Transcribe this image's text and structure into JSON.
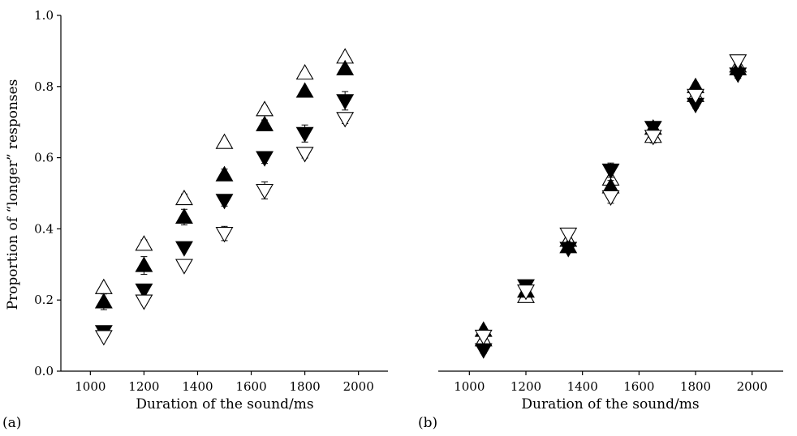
{
  "chart_data": [
    {
      "type": "scatter",
      "panel_label": "(a)",
      "xlabel": "Duration of the sound/ms",
      "ylabel": "Proportion of “longer” responses",
      "xlim": [
        890,
        2110
      ],
      "ylim": [
        0.0,
        1.0
      ],
      "xticks": [
        1000,
        1200,
        1400,
        1600,
        1800,
        2000
      ],
      "yticks": [
        0.0,
        0.2,
        0.4,
        0.6,
        0.8,
        1.0
      ],
      "ytick_labels": [
        "0.0",
        "0.2",
        "0.4",
        "0.6",
        "0.8",
        "1.0"
      ],
      "grid": false,
      "x": [
        1050,
        1200,
        1350,
        1500,
        1650,
        1800,
        1950
      ],
      "series": [
        {
          "marker": "triangle-up-open",
          "values": [
            0.235,
            0.357,
            0.485,
            0.643,
            0.735,
            0.838,
            0.883
          ],
          "errors": [
            0.01,
            0.012,
            0.013,
            0.01,
            0.01,
            0.006,
            0.006
          ]
        },
        {
          "marker": "triangle-up-filled",
          "values": [
            0.195,
            0.297,
            0.433,
            0.552,
            0.693,
            0.787,
            0.85
          ],
          "errors": [
            0.022,
            0.025,
            0.022,
            0.016,
            0.013,
            0.006,
            0.008
          ]
        },
        {
          "marker": "triangle-down-filled",
          "values": [
            0.111,
            0.228,
            0.347,
            0.48,
            0.6,
            0.668,
            0.76
          ],
          "errors": [
            0.003,
            0.006,
            0.006,
            0.016,
            0.016,
            0.024,
            0.026
          ]
        },
        {
          "marker": "triangle-down-open",
          "values": [
            0.097,
            0.197,
            0.297,
            0.387,
            0.508,
            0.612,
            0.71
          ],
          "errors": [
            0.003,
            0.005,
            0.008,
            0.02,
            0.024,
            0.013,
            0.014
          ]
        }
      ]
    },
    {
      "type": "scatter",
      "panel_label": "(b)",
      "xlabel": "Duration of the sound/ms",
      "xlim": [
        890,
        2110
      ],
      "ylim": [
        0.0,
        1.0
      ],
      "xticks": [
        1000,
        1200,
        1400,
        1600,
        1800,
        2000
      ],
      "grid": false,
      "x": [
        1050,
        1200,
        1350,
        1500,
        1650,
        1800,
        1950
      ],
      "series": [
        {
          "marker": "triangle-up-open",
          "values": [
            0.088,
            0.21,
            0.368,
            0.54,
            0.66,
            0.775,
            0.858
          ],
          "errors": [
            0.01,
            0.012,
            0.01,
            0.02,
            0.018,
            0.01,
            0.012
          ]
        },
        {
          "marker": "triangle-up-filled",
          "values": [
            0.115,
            0.225,
            0.35,
            0.518,
            0.683,
            0.8,
            0.85
          ],
          "errors": [
            0.01,
            0.012,
            0.01,
            0.018,
            0.012,
            0.01,
            0.012
          ]
        },
        {
          "marker": "triangle-down-filled",
          "values": [
            0.06,
            0.24,
            0.345,
            0.565,
            0.685,
            0.75,
            0.835
          ],
          "errors": [
            0.01,
            0.012,
            0.01,
            0.02,
            0.012,
            0.01,
            0.012
          ]
        },
        {
          "marker": "triangle-down-open",
          "values": [
            0.098,
            0.225,
            0.385,
            0.49,
            0.66,
            0.775,
            0.872
          ],
          "errors": [
            0.01,
            0.012,
            0.01,
            0.018,
            0.018,
            0.01,
            0.012
          ]
        }
      ]
    }
  ]
}
